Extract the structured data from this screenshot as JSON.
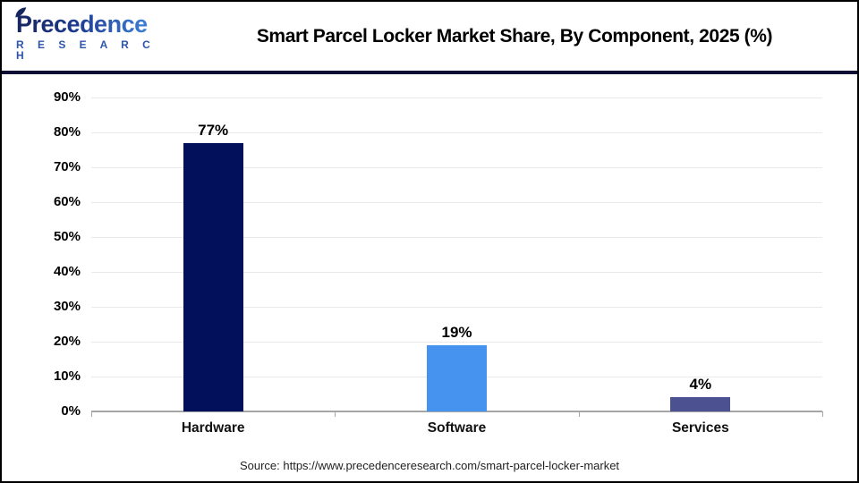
{
  "header": {
    "logo": {
      "brand": "Precedence",
      "subtitle": "R E S E A R C H"
    },
    "title": "Smart Parcel Locker Market Share, By Component, 2025 (%)"
  },
  "source": "Source: https://www.precedenceresearch.com/smart-parcel-locker-market",
  "colors": {
    "card_border": "#000000",
    "header_separator": "#0b0b33",
    "gridline": "#e9e9e9",
    "axis": "#a6a6a6",
    "logo_dark": "#17255f",
    "logo_light": "#3d7fd6",
    "logo_subtitle": "#2d55ae"
  },
  "chart_data": {
    "type": "bar",
    "title": "Smart Parcel Locker Market Share, By Component, 2025 (%)",
    "categories": [
      "Hardware",
      "Software",
      "Services"
    ],
    "values": [
      77,
      19,
      4
    ],
    "value_labels": [
      "77%",
      "19%",
      "4%"
    ],
    "bar_colors": [
      "#020f5b",
      "#4593ef",
      "#4c5191"
    ],
    "xlabel": "",
    "ylabel": "",
    "ylim": [
      0,
      90
    ],
    "ytick_step": 10,
    "ytick_suffix": "%",
    "grid": true,
    "legend": false
  }
}
